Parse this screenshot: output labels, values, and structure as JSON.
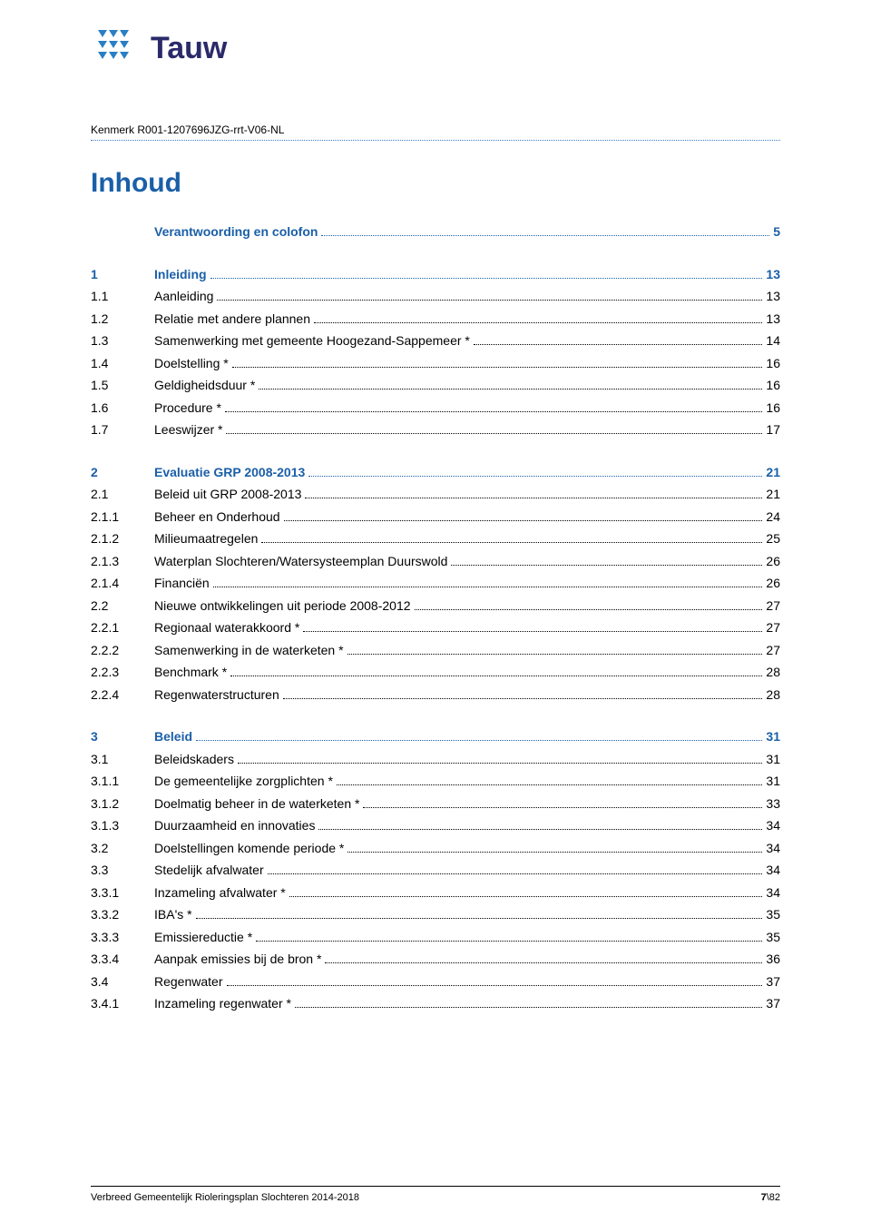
{
  "brand": {
    "name": "Tauw",
    "logo_color": "#2a7fc4",
    "text_color": "#2a2a6a"
  },
  "kenmerk": "Kenmerk R001-1207696JZG-rrt-V06-NL",
  "heading": "Inhoud",
  "colors": {
    "heading_blue": "#1a5fa8",
    "rule_blue": "#3a7fc4",
    "text": "#000000",
    "background": "#ffffff"
  },
  "toc": [
    {
      "num": "",
      "title": "Verantwoording en colofon",
      "page": "5",
      "heading": true
    },
    {
      "spacer": true
    },
    {
      "num": "1",
      "title": "Inleiding",
      "page": "13",
      "heading": true
    },
    {
      "num": "1.1",
      "title": "Aanleiding",
      "page": "13"
    },
    {
      "num": "1.2",
      "title": "Relatie met andere plannen",
      "page": "13"
    },
    {
      "num": "1.3",
      "title": "Samenwerking met gemeente Hoogezand-Sappemeer *",
      "page": "14"
    },
    {
      "num": "1.4",
      "title": "Doelstelling *",
      "page": "16"
    },
    {
      "num": "1.5",
      "title": "Geldigheidsduur *",
      "page": "16"
    },
    {
      "num": "1.6",
      "title": "Procedure *",
      "page": "16"
    },
    {
      "num": "1.7",
      "title": "Leeswijzer *",
      "page": "17"
    },
    {
      "spacer": true
    },
    {
      "num": "2",
      "title": "Evaluatie GRP 2008-2013",
      "page": "21",
      "heading": true
    },
    {
      "num": "2.1",
      "title": "Beleid uit GRP 2008-2013",
      "page": "21"
    },
    {
      "num": "2.1.1",
      "title": "Beheer en Onderhoud",
      "page": "24"
    },
    {
      "num": "2.1.2",
      "title": "Milieumaatregelen",
      "page": "25"
    },
    {
      "num": "2.1.3",
      "title": "Waterplan Slochteren/Watersysteemplan Duurswold",
      "page": "26"
    },
    {
      "num": "2.1.4",
      "title": "Financiën",
      "page": "26"
    },
    {
      "num": "2.2",
      "title": "Nieuwe ontwikkelingen uit periode 2008-2012",
      "page": "27"
    },
    {
      "num": "2.2.1",
      "title": "Regionaal waterakkoord *",
      "page": "27"
    },
    {
      "num": "2.2.2",
      "title": "Samenwerking in de waterketen *",
      "page": "27"
    },
    {
      "num": "2.2.3",
      "title": "Benchmark *",
      "page": "28"
    },
    {
      "num": "2.2.4",
      "title": "Regenwaterstructuren",
      "page": "28"
    },
    {
      "spacer": true
    },
    {
      "num": "3",
      "title": "Beleid",
      "page": "31",
      "heading": true
    },
    {
      "num": "3.1",
      "title": "Beleidskaders",
      "page": "31"
    },
    {
      "num": "3.1.1",
      "title": "De gemeentelijke zorgplichten *",
      "page": "31"
    },
    {
      "num": "3.1.2",
      "title": "Doelmatig beheer in de waterketen *",
      "page": "33"
    },
    {
      "num": "3.1.3",
      "title": "Duurzaamheid en innovaties",
      "page": "34"
    },
    {
      "num": "3.2",
      "title": "Doelstellingen komende periode *",
      "page": "34"
    },
    {
      "num": "3.3",
      "title": "Stedelijk afvalwater",
      "page": "34"
    },
    {
      "num": "3.3.1",
      "title": "Inzameling afvalwater *",
      "page": "34"
    },
    {
      "num": "3.3.2",
      "title": "IBA's *",
      "page": "35"
    },
    {
      "num": "3.3.3",
      "title": "Emissiereductie *",
      "page": "35"
    },
    {
      "num": "3.3.4",
      "title": "Aanpak emissies bij de bron *",
      "page": "36"
    },
    {
      "num": "3.4",
      "title": "Regenwater",
      "page": "37"
    },
    {
      "num": "3.4.1",
      "title": "Inzameling regenwater *",
      "page": "37"
    }
  ],
  "footer": {
    "left": "Verbreed Gemeentelijk Rioleringsplan Slochteren 2014-2018",
    "right_bold": "7",
    "right_rest": "\\82"
  }
}
